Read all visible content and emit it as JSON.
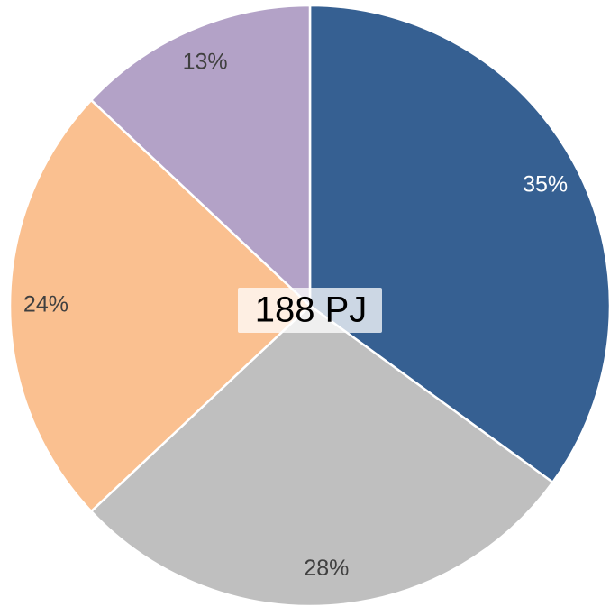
{
  "chart_data": {
    "type": "pie",
    "values": [
      35,
      28,
      24,
      13
    ],
    "value_labels": [
      "35%",
      "28%",
      "24%",
      "13%"
    ],
    "colors": [
      "#366092",
      "#bfbfbf",
      "#fac090",
      "#b3a2c7"
    ],
    "label_colors": [
      "#ffffff",
      "#404040",
      "#404040",
      "#404040"
    ],
    "center_label": "188 PJ"
  }
}
